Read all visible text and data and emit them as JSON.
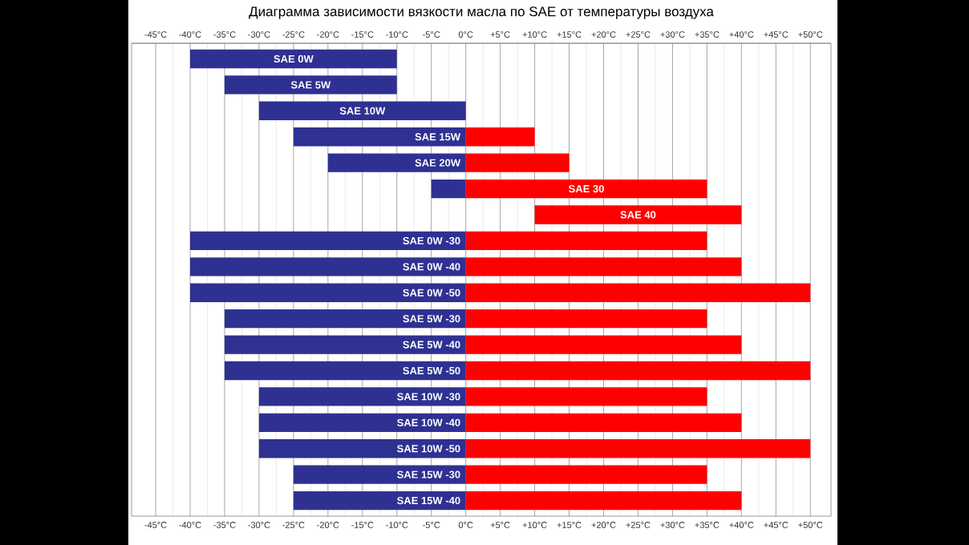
{
  "chart_data": {
    "type": "bar",
    "orientation": "horizontal",
    "title": "Диаграмма зависимости вязкости масла по SAE от температуры воздуха",
    "categories": [
      "SAE 0W",
      "SAE 5W",
      "SAE 10W",
      "SAE 15W",
      "SAE 20W",
      "SAE 30",
      "SAE 40",
      "SAE 0W -30",
      "SAE 0W -40",
      "SAE 0W -50",
      "SAE 5W -30",
      "SAE 5W -40",
      "SAE 5W -50",
      "SAE 10W -30",
      "SAE 10W -40",
      "SAE 10W -50",
      "SAE 15W -30",
      "SAE 15W -40"
    ],
    "series": [
      {
        "color": "#2e3192",
        "base": [
          -40,
          -35,
          -30,
          -25,
          -20,
          -5,
          null,
          -40,
          -40,
          -40,
          -35,
          -35,
          -35,
          -30,
          -30,
          -30,
          -25,
          -25
        ],
        "values": [
          30,
          25,
          30,
          25,
          20,
          5,
          null,
          40,
          40,
          40,
          35,
          35,
          35,
          30,
          30,
          30,
          25,
          25
        ]
      },
      {
        "color": "#ff0000",
        "base": [
          null,
          null,
          null,
          0,
          0,
          0,
          10,
          0,
          0,
          0,
          0,
          0,
          0,
          0,
          0,
          0,
          0,
          0
        ],
        "values": [
          null,
          null,
          null,
          10,
          15,
          35,
          30,
          35,
          40,
          50,
          35,
          40,
          50,
          35,
          40,
          50,
          35,
          40
        ]
      }
    ],
    "xlim": [
      -48.5,
      53
    ],
    "xticks": [
      {
        "value": -45,
        "label": "-45°C"
      },
      {
        "value": -40,
        "label": "-40°C"
      },
      {
        "value": -35,
        "label": "-35°C"
      },
      {
        "value": -30,
        "label": "-30°C"
      },
      {
        "value": -25,
        "label": "-25°C"
      },
      {
        "value": -20,
        "label": "-20°C"
      },
      {
        "value": -15,
        "label": "-15°C"
      },
      {
        "value": -10,
        "label": "-10°C"
      },
      {
        "value": -5,
        "label": "-5°C"
      },
      {
        "value": 0,
        "label": "0°C"
      },
      {
        "value": 5,
        "label": "+5°C"
      },
      {
        "value": 10,
        "label": "+10°C"
      },
      {
        "value": 15,
        "label": "+15°C"
      },
      {
        "value": 20,
        "label": "+20°C"
      },
      {
        "value": 25,
        "label": "+25°C"
      },
      {
        "value": 30,
        "label": "+30°C"
      },
      {
        "value": 35,
        "label": "+35°C"
      },
      {
        "value": 40,
        "label": "+40°C"
      },
      {
        "value": 45,
        "label": "+45°C"
      },
      {
        "value": 50,
        "label": "+50°C"
      }
    ],
    "x2lim": [
      -48.5,
      53
    ],
    "x2ticks": [
      {
        "value": -45,
        "label": "-45°C"
      },
      {
        "value": -40,
        "label": "-40°C"
      },
      {
        "value": -35,
        "label": "-35°C"
      },
      {
        "value": -30,
        "label": "-30°C"
      },
      {
        "value": -25,
        "label": "-25°C"
      },
      {
        "value": -20,
        "label": "-20°C"
      },
      {
        "value": -15,
        "label": "-15°C"
      },
      {
        "value": -10,
        "label": "-10°C"
      },
      {
        "value": -5,
        "label": "-5°C"
      },
      {
        "value": 0,
        "label": "0°C"
      },
      {
        "value": 5,
        "label": "+5°C"
      },
      {
        "value": 10,
        "label": "+10°C"
      },
      {
        "value": 15,
        "label": "+15°C"
      },
      {
        "value": 20,
        "label": "+20°C"
      },
      {
        "value": 25,
        "label": "+25°C"
      },
      {
        "value": 30,
        "label": "+30°C"
      },
      {
        "value": 35,
        "label": "+35°C"
      },
      {
        "value": 40,
        "label": "+40°C"
      },
      {
        "value": 45,
        "label": "+45°C"
      },
      {
        "value": 50,
        "label": "+50°C"
      }
    ],
    "grid": true,
    "tick_labels": "x"
  }
}
